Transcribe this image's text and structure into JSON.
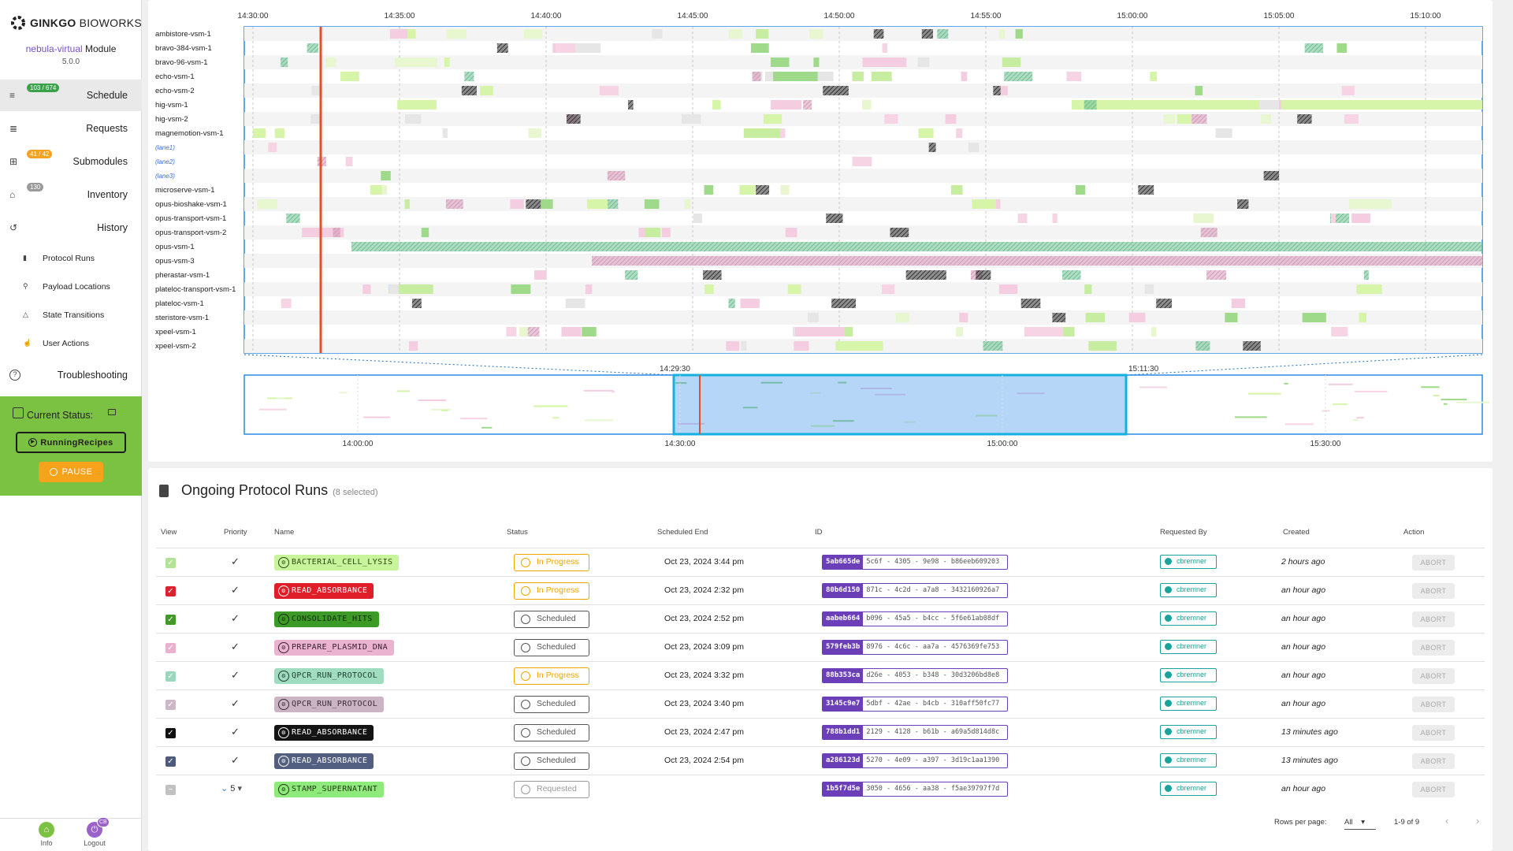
{
  "brand": {
    "name_bold": "GINKGO",
    "name_rest": "BIOWORKS"
  },
  "module": {
    "name": "nebula-virtual",
    "suffix": "Module",
    "version": "5.0.0"
  },
  "nav": [
    {
      "label": "Schedule",
      "badge": "103 / 674",
      "badge_color": "#3aa34a",
      "icon": "schedule-icon",
      "active": true
    },
    {
      "label": "Requests",
      "badge": "",
      "icon": "requests-icon"
    },
    {
      "label": "Submodules",
      "badge": "41 / 42",
      "badge_color": "#f6a21b",
      "icon": "submodules-icon"
    },
    {
      "label": "Inventory",
      "badge": "130",
      "badge_color": "#9a9a9a",
      "icon": "inventory-icon"
    },
    {
      "label": "History",
      "badge": "",
      "icon": "history-icon"
    }
  ],
  "history_sub": [
    "Protocol Runs",
    "Payload Locations",
    "State Transitions",
    "User Actions"
  ],
  "troubleshooting": "Troubleshooting",
  "current_status": {
    "label": "Current Status:",
    "value": "RunningRecipes",
    "pause": "PAUSE"
  },
  "footer": {
    "info": "Info",
    "logout": "Logout",
    "logout_initials": "CB"
  },
  "timeline": {
    "time_labels": [
      "14:30:00",
      "14:35:00",
      "14:40:00",
      "14:45:00",
      "14:50:00",
      "14:55:00",
      "15:00:00",
      "15:05:00",
      "15:10:00"
    ],
    "lanes": [
      "ambistore-vsm-1",
      "bravo-384-vsm-1",
      "bravo-96-vsm-1",
      "echo-vsm-1",
      "echo-vsm-2",
      "hig-vsm-1",
      "hig-vsm-2",
      "magnemotion-vsm-1",
      "(lane1)",
      "(lane2)",
      "(lane3)",
      "microserve-vsm-1",
      "opus-bioshake-vsm-1",
      "opus-transport-vsm-1",
      "opus-transport-vsm-2",
      "opus-vsm-1",
      "opus-vsm-3",
      "pherastar-vsm-1",
      "plateloc-transport-vsm-1",
      "plateloc-vsm-1",
      "steristore-vsm-1",
      "xpeel-vsm-1",
      "xpeel-vsm-2"
    ],
    "overview_labels": [
      "14:00:00",
      "14:30:00",
      "15:00:00",
      "15:30:00"
    ],
    "window_start": "14:29:30",
    "window_end": "15:11:30"
  },
  "table": {
    "title": "Ongoing Protocol Runs",
    "selected": "(8 selected)",
    "headers": [
      "View",
      "Priority",
      "Name",
      "Status",
      "Scheduled End",
      "ID",
      "Requested By",
      "Created",
      "Action"
    ],
    "rows": [
      {
        "view": "#a9e08a",
        "name": "BACTERIAL_CELL_LYSIS",
        "pill_bg": "#c8f59c",
        "pill_fg": "#2d4a12",
        "status": "In Progress",
        "status_color": "#f0a500",
        "end": "Oct 23, 2024 3:44 pm",
        "id_short": "5ab665de",
        "id_rest": "5c6f - 4305 - 9e98 - b86eeb609203",
        "user": "cbremner",
        "created": "2 hours ago",
        "action": "ABORT",
        "priority": ""
      },
      {
        "view": "#d9232e",
        "name": "READ_ABSORBANCE",
        "pill_bg": "#e01e2a",
        "pill_fg": "#ffffff",
        "status": "In Progress",
        "status_color": "#f0a500",
        "end": "Oct 23, 2024 2:32 pm",
        "id_short": "80b6d150",
        "id_rest": "871c - 4c2d - a7a8 - 3432160926a7",
        "user": "cbremner",
        "created": "an hour ago",
        "action": "ABORT",
        "priority": ""
      },
      {
        "view": "#3f9b25",
        "name": "CONSOLIDATE_HITS",
        "pill_bg": "#3e9a26",
        "pill_fg": "#0f2b07",
        "status": "Scheduled",
        "status_color": "#555555",
        "end": "Oct 23, 2024 2:52 pm",
        "id_short": "aabeb664",
        "id_rest": "b096 - 45a5 - b4cc - 5f6e61ab08df",
        "user": "cbremner",
        "created": "an hour ago",
        "action": "ABORT",
        "priority": ""
      },
      {
        "view": "#e8a8c8",
        "name": "PREPARE_PLASMID_DNA",
        "pill_bg": "#eab3cf",
        "pill_fg": "#3b2030",
        "status": "Scheduled",
        "status_color": "#555555",
        "end": "Oct 23, 2024 3:09 pm",
        "id_short": "579feb3b",
        "id_rest": "8976 - 4c6c - aa7a - 4576369fe753",
        "user": "cbremner",
        "created": "an hour ago",
        "action": "ABORT",
        "priority": ""
      },
      {
        "view": "#8fd4b6",
        "name": "QPCR_RUN_PROTOCOL",
        "pill_bg": "#9fdcc0",
        "pill_fg": "#1f3d30",
        "status": "In Progress",
        "status_color": "#f0a500",
        "end": "Oct 23, 2024 3:32 pm",
        "id_short": "88b353ca",
        "id_rest": "d26e - 4053 - b348 - 30d3206bd8e8",
        "user": "cbremner",
        "created": "an hour ago",
        "action": "ABORT",
        "priority": ""
      },
      {
        "view": "#c7b1c0",
        "name": "QPCR_RUN_PROTOCOL",
        "pill_bg": "#cbb5c4",
        "pill_fg": "#3a2c35",
        "status": "Scheduled",
        "status_color": "#555555",
        "end": "Oct 23, 2024 3:40 pm",
        "id_short": "3145c9e7",
        "id_rest": "5dbf - 42ae - b4cb - 310aff50fc77",
        "user": "cbremner",
        "created": "an hour ago",
        "action": "ABORT",
        "priority": ""
      },
      {
        "view": "#111111",
        "name": "READ_ABSORBANCE",
        "pill_bg": "#141414",
        "pill_fg": "#ffffff",
        "status": "Scheduled",
        "status_color": "#555555",
        "end": "Oct 23, 2024 2:47 pm",
        "id_short": "788b1dd1",
        "id_rest": "2129 - 4128 - b61b - a69a5d814d8c",
        "user": "cbremner",
        "created": "13 minutes ago",
        "action": "ABORT",
        "priority": ""
      },
      {
        "view": "#4f5b7a",
        "name": "READ_ABSORBANCE",
        "pill_bg": "#535f80",
        "pill_fg": "#ffffff",
        "status": "Scheduled",
        "status_color": "#555555",
        "end": "Oct 23, 2024 2:54 pm",
        "id_short": "a286123d",
        "id_rest": "5270 - 4e09 - a397 - 3d19c1aa1390",
        "user": "cbremner",
        "created": "13 minutes ago",
        "action": "ABORT",
        "priority": ""
      },
      {
        "view": "#bbbbbb",
        "name": "STAMP_SUPERNATANT",
        "pill_bg": "#8fea7c",
        "pill_fg": "#1f3a12",
        "status": "Requested",
        "status_color": "#999999",
        "end": "",
        "id_short": "1b5f7d5e",
        "id_rest": "3050 - 4656 - aa38 - f5ae39797f7d",
        "user": "cbremner",
        "created": "an hour ago",
        "action": "ABORT",
        "priority": "5"
      }
    ],
    "rows_per_page_label": "Rows per page:",
    "rows_per_page": "All",
    "page_range": "1-9 of 9"
  }
}
